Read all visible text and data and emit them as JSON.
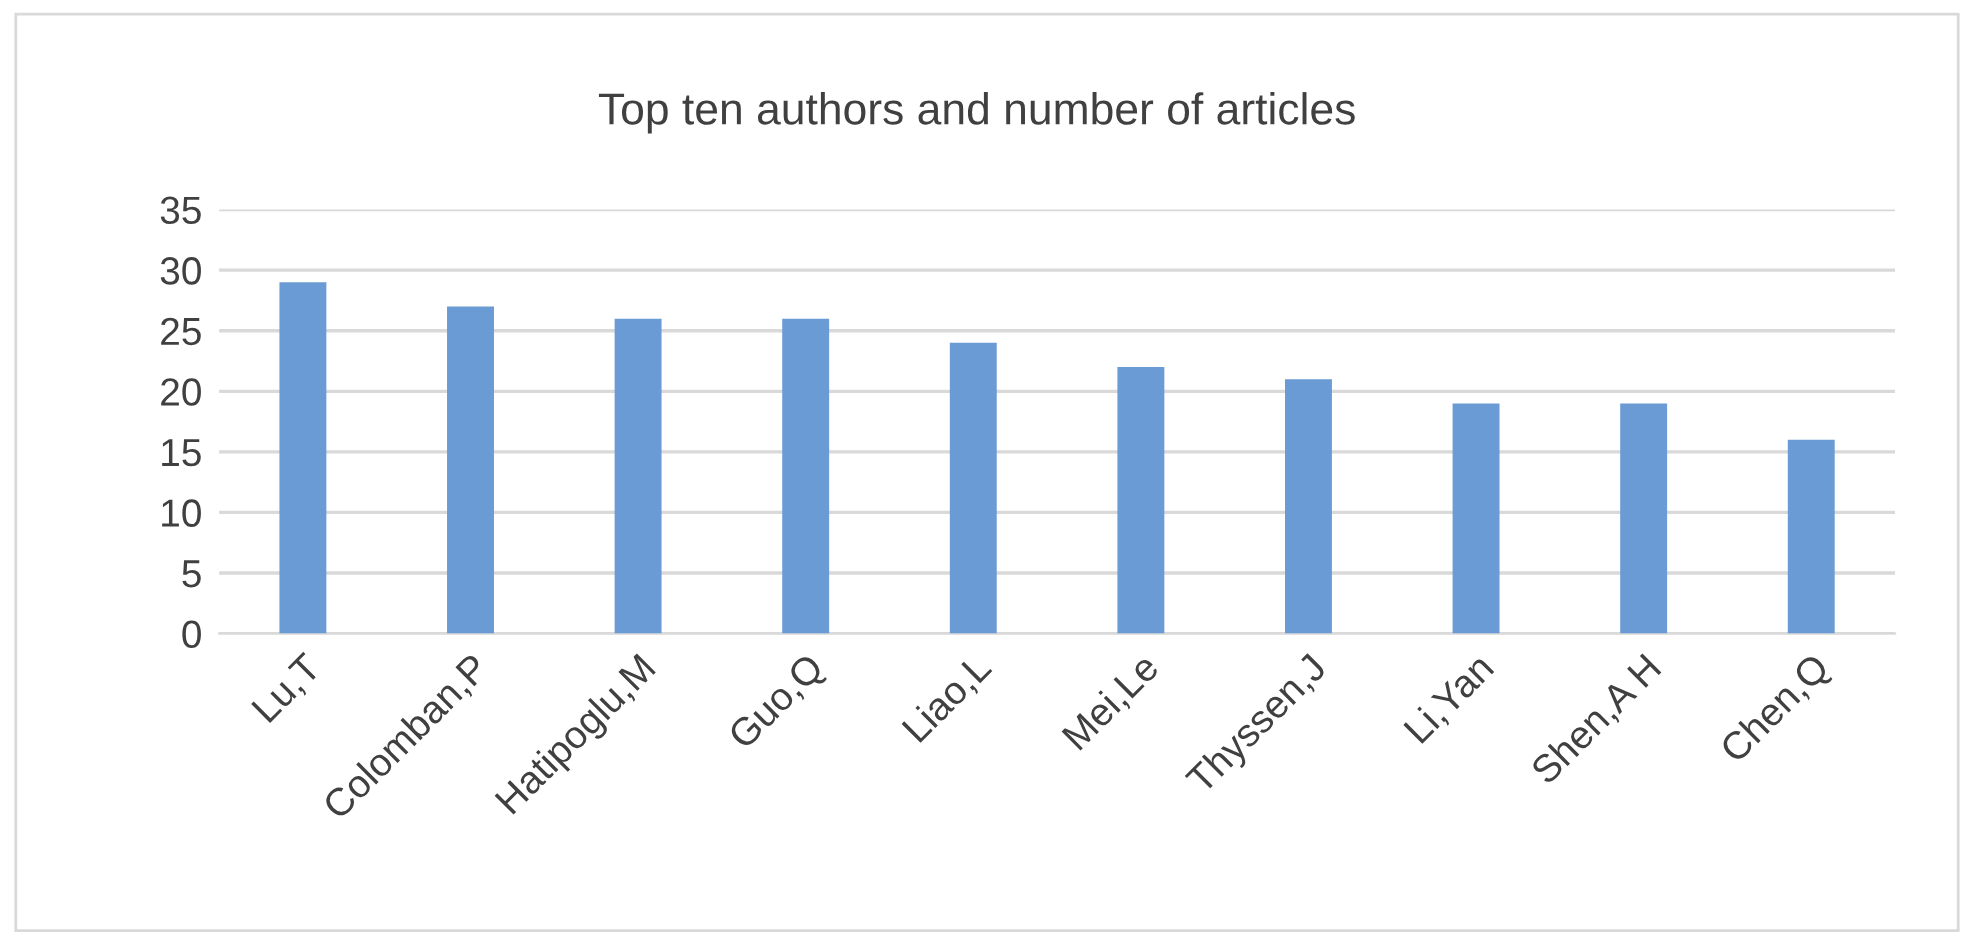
{
  "chart_data": {
    "type": "bar",
    "title": "Top ten authors and number of articles",
    "categories": [
      "Lu,T",
      "Colomban,P",
      "Hatipoglu,M",
      "Guo,Q",
      "Liao,L",
      "Mei,Le",
      "Thyssen,J",
      "Li,Yan",
      "Shen,A H",
      "Chen,Q"
    ],
    "values": [
      29,
      27,
      26,
      26,
      24,
      22,
      21,
      19,
      19,
      16
    ],
    "color": "#6a9bd4",
    "ylim": [
      0,
      35
    ],
    "yticks": [
      0,
      5,
      10,
      15,
      20,
      25,
      30,
      35
    ],
    "grid": "y",
    "legend": false
  }
}
